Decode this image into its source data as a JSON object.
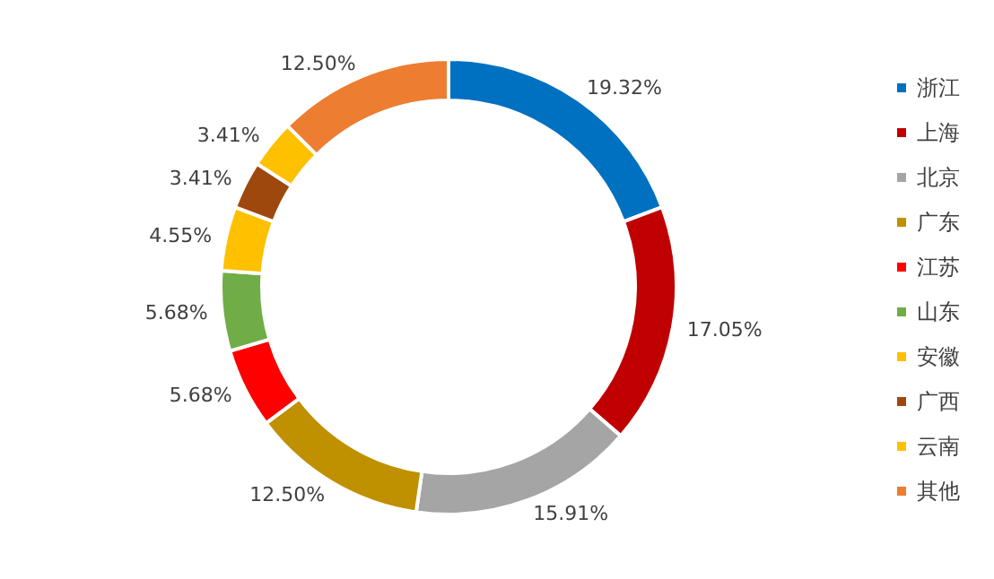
{
  "chart_data": {
    "type": "donut",
    "categories": [
      "浙江",
      "上海",
      "北京",
      "广东",
      "江苏",
      "山东",
      "安徽",
      "广西",
      "云南",
      "其他"
    ],
    "values": [
      19.32,
      17.05,
      15.91,
      12.5,
      5.68,
      5.68,
      4.55,
      3.41,
      3.41,
      12.5
    ],
    "value_labels": [
      "19.32%",
      "17.05%",
      "15.91%",
      "12.50%",
      "5.68%",
      "5.68%",
      "4.55%",
      "3.41%",
      "3.41%",
      "12.50%"
    ],
    "colors": [
      "#0070c0",
      "#c00000",
      "#a5a5a5",
      "#bf9000",
      "#ff0000",
      "#70ad47",
      "#ffc000",
      "#9e480e",
      "#ffc000",
      "#ed7d31"
    ],
    "legend": "right"
  }
}
